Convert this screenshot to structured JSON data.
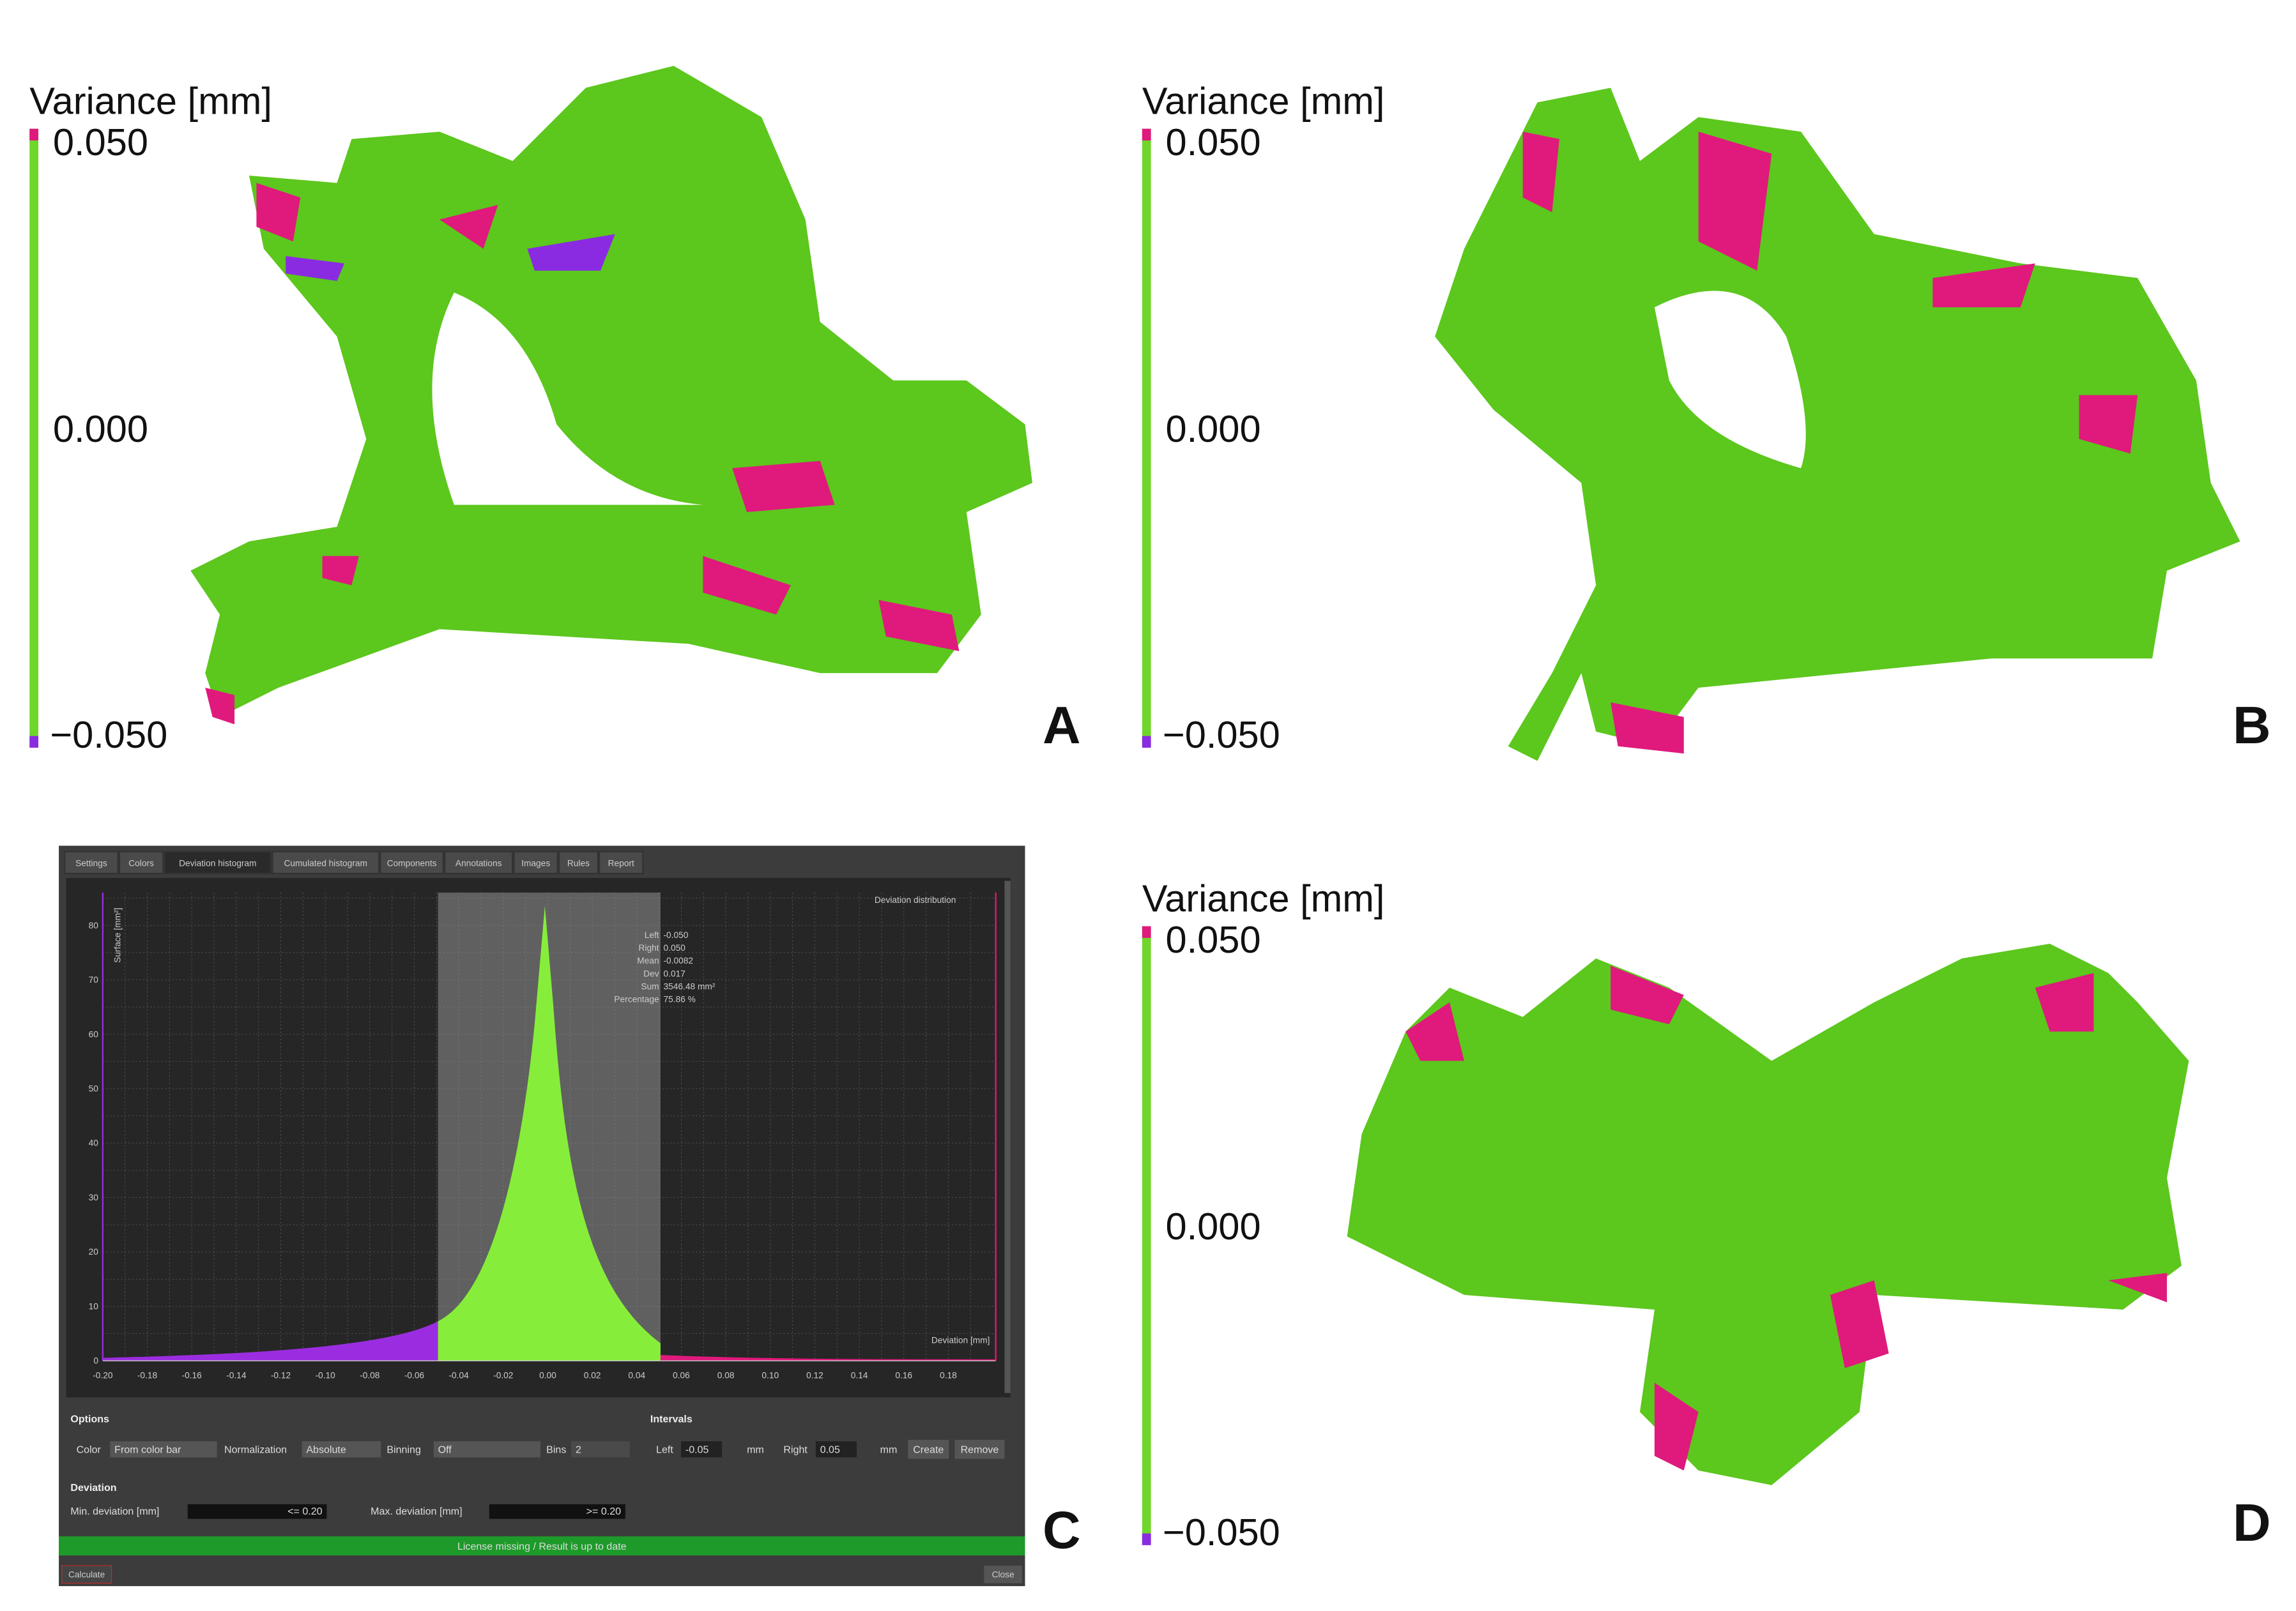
{
  "panels": [
    {
      "letter": "A",
      "colorbar": {
        "title": "Variance [mm]",
        "max": "0.050",
        "mid": "0.000",
        "min": "−0.050"
      }
    },
    {
      "letter": "B",
      "colorbar": {
        "title": "Variance [mm]",
        "max": "0.050",
        "mid": "0.000",
        "min": "−0.050"
      }
    },
    {
      "letter": "D",
      "colorbar": {
        "title": "Variance [mm]",
        "max": "0.050",
        "mid": "0.000",
        "min": "−0.050"
      }
    }
  ],
  "software": {
    "letter": "C",
    "tabs": [
      "Settings",
      "Colors",
      "Deviation histogram",
      "Cumulated histogram",
      "Components",
      "Annotations",
      "Images",
      "Rules",
      "Report"
    ],
    "plot": {
      "title": "Deviation distribution",
      "x_label": "Deviation [mm]",
      "y_label": "Surface [mm²]",
      "x_ticks": [
        "-0.20",
        "-0.18",
        "-0.16",
        "-0.14",
        "-0.12",
        "-0.10",
        "-0.08",
        "-0.06",
        "-0.04",
        "-0.02",
        "0.00",
        "0.02",
        "0.04",
        "0.06",
        "0.08",
        "0.10",
        "0.12",
        "0.14",
        "0.16",
        "0.18"
      ],
      "y_ticks": [
        "0",
        "10",
        "20",
        "30",
        "40",
        "50",
        "60",
        "70",
        "80"
      ],
      "stats": [
        {
          "label": "Left",
          "value": "-0.050"
        },
        {
          "label": "Right",
          "value": "0.050"
        },
        {
          "label": "Mean",
          "value": "-0.0082"
        },
        {
          "label": "Dev",
          "value": "0.017"
        },
        {
          "label": "Sum",
          "value": "3546.48 mm²"
        },
        {
          "label": "Percentage",
          "value": "75.86 %"
        }
      ]
    },
    "options": {
      "title": "Options",
      "color_label": "Color",
      "color": "From color bar",
      "normalization_label": "Normalization",
      "normalization": "Absolute",
      "binning_label": "Binning",
      "binning": "Off",
      "bins_label": "Bins",
      "bins": "2"
    },
    "intervals": {
      "title": "Intervals",
      "left_label": "Left",
      "left": "-0.05",
      "left_unit": "mm",
      "right_label": "Right",
      "right": "0.05",
      "right_unit": "mm",
      "create": "Create",
      "remove": "Remove"
    },
    "deviation": {
      "title": "Deviation",
      "min_label": "Min. deviation [mm]",
      "min": "<= 0.20",
      "max_label": "Max. deviation [mm]",
      "max": ">= 0.20"
    },
    "status": "License missing / Result is up to date",
    "buttons": [
      "Calculate",
      "Close"
    ]
  }
}
